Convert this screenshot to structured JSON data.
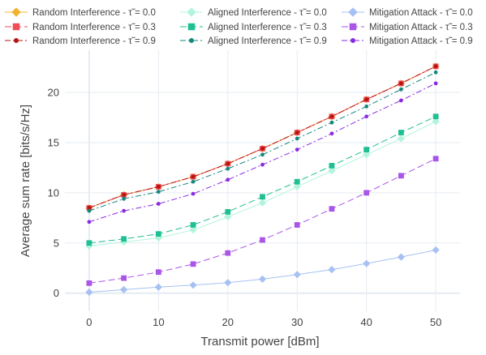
{
  "chart_data": {
    "type": "line",
    "xlabel": "Transmit power [dBm]",
    "ylabel": "Average sum rate [bits/s/Hz]",
    "x": [
      0,
      5,
      10,
      15,
      20,
      25,
      30,
      35,
      40,
      45,
      50
    ],
    "xlim": [
      -3.5,
      53.5
    ],
    "ylim": [
      -1.8,
      24.2
    ],
    "xticks": [
      0,
      10,
      20,
      30,
      40,
      50
    ],
    "yticks": [
      0,
      5,
      10,
      15,
      20
    ],
    "grid": true,
    "legend_position": "top",
    "legend_columns": 3,
    "series": [
      {
        "name": "Random Interference - τ̃ = 0.0",
        "color": "#f0b431",
        "marker": "diamond",
        "dash": "solid",
        "values": [
          8.5,
          9.8,
          10.6,
          11.6,
          12.9,
          14.4,
          16.0,
          17.6,
          19.3,
          20.9,
          22.6
        ]
      },
      {
        "name": "Random Interference - τ̃ = 0.3",
        "color": "#ee4e5a",
        "marker": "square",
        "dash": "dash",
        "values": [
          8.5,
          9.8,
          10.6,
          11.6,
          12.9,
          14.4,
          16.0,
          17.6,
          19.3,
          20.9,
          22.6
        ]
      },
      {
        "name": "Random Interference - τ̃ = 0.9",
        "color": "#b51411",
        "marker": "circle",
        "dash": "dashdot",
        "values": [
          8.5,
          9.8,
          10.6,
          11.6,
          12.9,
          14.4,
          16.0,
          17.6,
          19.3,
          20.9,
          22.6
        ]
      },
      {
        "name": "Aligned Interference - τ̃ = 0.0",
        "color": "#b2f5dc",
        "marker": "diamond",
        "dash": "solid",
        "values": [
          4.7,
          5.1,
          5.5,
          6.3,
          7.6,
          9.0,
          10.6,
          12.2,
          13.8,
          15.4,
          17.1
        ]
      },
      {
        "name": "Aligned Interference - τ̃ = 0.3",
        "color": "#1fbf93",
        "marker": "square",
        "dash": "dash",
        "values": [
          5.0,
          5.4,
          5.9,
          6.8,
          8.1,
          9.6,
          11.1,
          12.7,
          14.3,
          16.0,
          17.6
        ]
      },
      {
        "name": "Aligned Interference - τ̃ = 0.9",
        "color": "#16877d",
        "marker": "circle",
        "dash": "dashdot",
        "values": [
          8.2,
          9.4,
          10.1,
          11.1,
          12.4,
          13.8,
          15.4,
          17.0,
          18.6,
          20.3,
          22.0
        ]
      },
      {
        "name": "Mitigation Attack - τ̃ = 0.0",
        "color": "#a6c1f2",
        "marker": "diamond",
        "dash": "solid",
        "values": [
          0.1,
          0.35,
          0.6,
          0.8,
          1.05,
          1.4,
          1.85,
          2.35,
          2.95,
          3.6,
          4.3
        ]
      },
      {
        "name": "Mitigation Attack - τ̃ = 0.3",
        "color": "#a855e8",
        "marker": "square",
        "dash": "dash",
        "values": [
          1.0,
          1.5,
          2.1,
          2.9,
          4.0,
          5.3,
          6.8,
          8.4,
          10.0,
          11.7,
          13.4
        ]
      },
      {
        "name": "Mitigation Attack - τ̃ = 0.9",
        "color": "#8a2be2",
        "marker": "circle",
        "dash": "dashdot",
        "values": [
          7.1,
          8.2,
          8.9,
          9.9,
          11.3,
          12.8,
          14.3,
          15.9,
          17.6,
          19.2,
          20.9
        ]
      }
    ]
  }
}
